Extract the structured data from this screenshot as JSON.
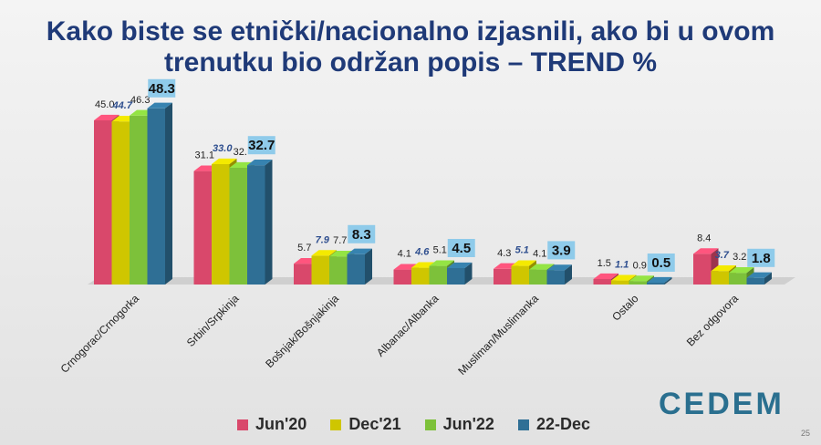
{
  "page": {
    "title_line1": "Kako biste se etnički/nacionalno izjasnili, ako bi u ovom",
    "title_line2": "trenutku bio održan popis – TREND %",
    "page_number": "25",
    "logo_text": "CEDEM"
  },
  "colors": {
    "jun20": "#d9486b",
    "dec21": "#cfc600",
    "jun22": "#7dc13a",
    "dec22": "#2f6f95",
    "label_dec21": "#2f4f8f",
    "callout_bg": "#8fcbea"
  },
  "chart_data": {
    "type": "bar",
    "categories": [
      "Crnogorac/Crnogorka",
      "Srbin/Srpkinja",
      "Bošnjak/Bošnjakinja",
      "Albanac/Albanka",
      "Musliman/Muslimanka",
      "Ostalo",
      "Bez odgovora"
    ],
    "series": [
      {
        "name": "Jun'20",
        "values": [
          45.0,
          31.1,
          5.7,
          4.1,
          4.3,
          1.5,
          8.4
        ],
        "labels": [
          "45.0",
          "31.1",
          "5.7",
          "4.1",
          "4.3",
          "1.5",
          "8.4"
        ]
      },
      {
        "name": "Dec'21",
        "values": [
          44.7,
          33.0,
          7.9,
          4.6,
          5.1,
          1.1,
          3.7
        ],
        "labels": [
          "44.7",
          "33.0",
          "7.9",
          "4.6",
          "5.1",
          "1.1",
          "3.7"
        ]
      },
      {
        "name": "Jun'22",
        "values": [
          46.3,
          32.0,
          7.7,
          5.1,
          4.1,
          0.9,
          3.2
        ],
        "labels": [
          "46.3",
          "32.",
          "7.7",
          "5.1",
          "4.1",
          "0.9",
          "3.2"
        ]
      },
      {
        "name": "22-Dec",
        "values": [
          48.3,
          32.7,
          8.3,
          4.5,
          3.9,
          0.5,
          1.8
        ],
        "labels": [
          "48.3",
          "32.7",
          "8.3",
          "4.5",
          "3.9",
          "0.5",
          "1.8"
        ]
      }
    ],
    "ylim": [
      0,
      55
    ],
    "legend_position": "bottom",
    "grid": false
  }
}
